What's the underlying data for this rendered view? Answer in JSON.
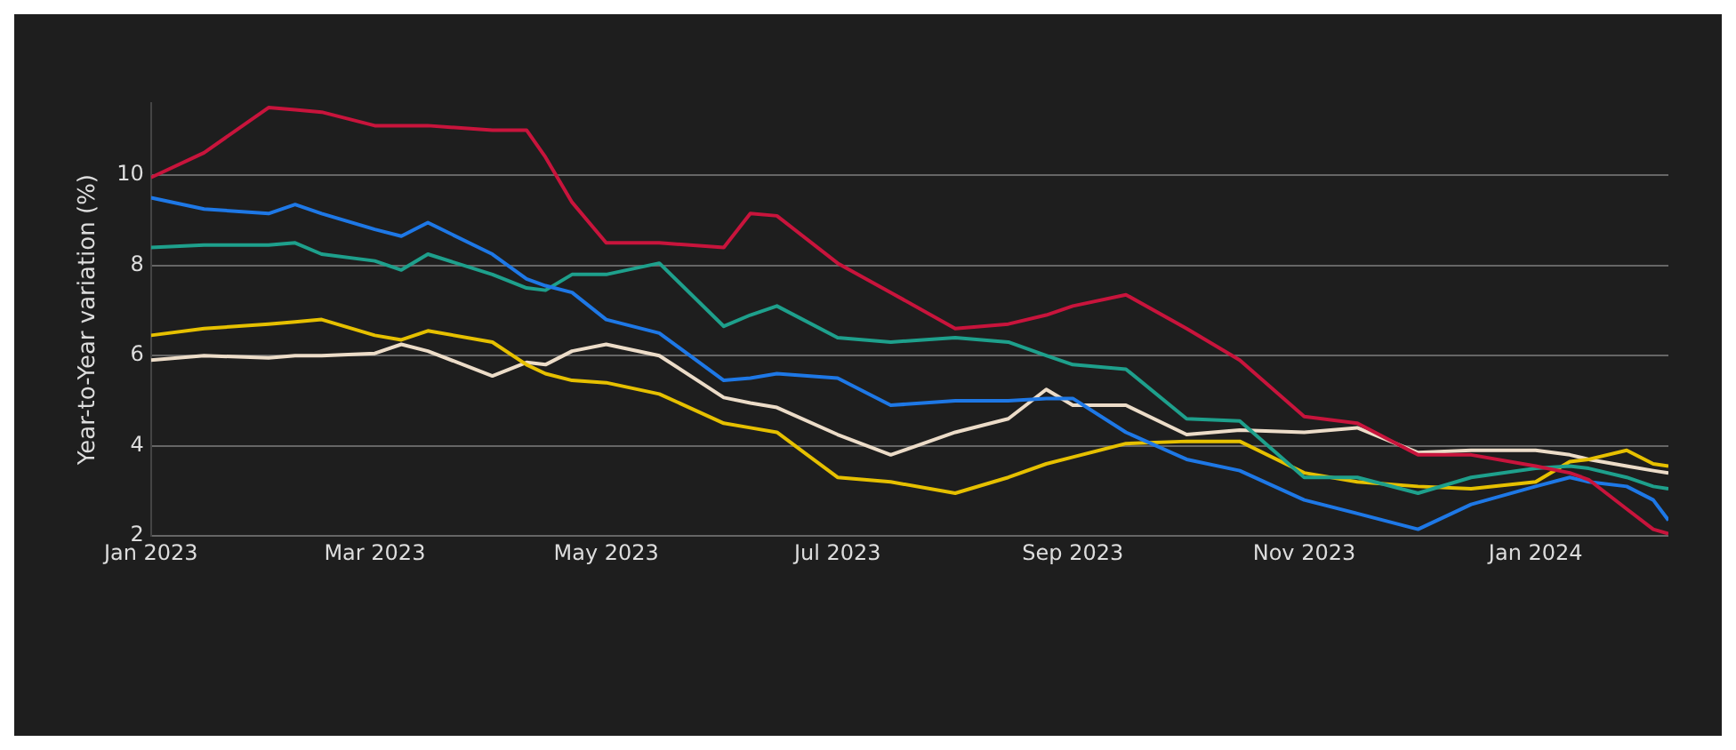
{
  "chart_data": {
    "type": "line",
    "ylabel": "Year-to-Year variation (%)",
    "x": [
      "2023-01-01",
      "2023-01-15",
      "2023-02-01",
      "2023-02-08",
      "2023-02-15",
      "2023-03-01",
      "2023-03-08",
      "2023-03-15",
      "2023-04-01",
      "2023-04-10",
      "2023-04-15",
      "2023-04-22",
      "2023-05-01",
      "2023-05-15",
      "2023-06-01",
      "2023-06-08",
      "2023-06-15",
      "2023-07-01",
      "2023-07-15",
      "2023-08-01",
      "2023-08-15",
      "2023-08-25",
      "2023-09-01",
      "2023-09-15",
      "2023-10-01",
      "2023-10-15",
      "2023-11-01",
      "2023-11-15",
      "2023-12-01",
      "2023-12-15",
      "2024-01-01",
      "2024-01-10",
      "2024-01-15",
      "2024-01-25",
      "2024-02-01",
      "2024-02-05"
    ],
    "xlim": [
      "2023-01-01",
      "2024-02-05"
    ],
    "xticks": [
      {
        "value": "2023-01-01",
        "label": "Jan 2023"
      },
      {
        "value": "2023-03-01",
        "label": "Mar 2023"
      },
      {
        "value": "2023-05-01",
        "label": "May 2023"
      },
      {
        "value": "2023-07-01",
        "label": "Jul 2023"
      },
      {
        "value": "2023-09-01",
        "label": "Sep 2023"
      },
      {
        "value": "2023-11-01",
        "label": "Nov 2023"
      },
      {
        "value": "2024-01-01",
        "label": "Jan 2024"
      }
    ],
    "ylim": [
      2,
      11.6
    ],
    "yticks": [
      2,
      4,
      6,
      8,
      10
    ],
    "grid": "y",
    "legend": false,
    "marker": "none",
    "line_style": "solid",
    "series": [
      {
        "color": "#c8143c",
        "values": [
          9.95,
          10.5,
          11.5,
          11.45,
          11.4,
          11.1,
          11.1,
          11.1,
          11.0,
          11.0,
          10.4,
          9.4,
          8.5,
          8.5,
          8.4,
          9.15,
          9.1,
          8.05,
          7.4,
          6.6,
          6.7,
          6.9,
          7.1,
          7.35,
          6.6,
          5.9,
          4.65,
          4.5,
          3.8,
          3.8,
          3.55,
          3.4,
          3.25,
          2.6,
          2.15,
          2.05
        ]
      },
      {
        "color": "#1e78e6",
        "values": [
          9.5,
          9.25,
          9.15,
          9.35,
          9.15,
          8.8,
          8.65,
          8.95,
          8.25,
          7.7,
          7.55,
          7.4,
          6.8,
          6.5,
          5.45,
          5.5,
          5.6,
          5.5,
          4.9,
          5.0,
          5.0,
          5.05,
          5.05,
          4.3,
          3.7,
          3.45,
          2.8,
          2.5,
          2.15,
          2.7,
          3.1,
          3.3,
          3.2,
          3.1,
          2.8,
          2.35
        ]
      },
      {
        "color": "#1ea08c",
        "values": [
          8.4,
          8.45,
          8.45,
          8.5,
          8.25,
          8.1,
          7.9,
          8.25,
          7.8,
          7.5,
          7.45,
          7.8,
          7.8,
          8.05,
          6.65,
          6.9,
          7.1,
          6.4,
          6.3,
          6.4,
          6.3,
          6.0,
          5.8,
          5.7,
          4.6,
          4.55,
          3.3,
          3.3,
          2.95,
          3.3,
          3.5,
          3.55,
          3.5,
          3.3,
          3.1,
          3.05
        ]
      },
      {
        "color": "#e6c000",
        "values": [
          6.45,
          6.6,
          6.7,
          6.75,
          6.8,
          6.45,
          6.35,
          6.55,
          6.3,
          5.8,
          5.6,
          5.45,
          5.4,
          5.15,
          4.5,
          4.4,
          4.3,
          3.3,
          3.2,
          2.95,
          3.3,
          3.6,
          3.75,
          4.05,
          4.1,
          4.1,
          3.4,
          3.2,
          3.1,
          3.05,
          3.2,
          3.65,
          3.7,
          3.9,
          3.6,
          3.55
        ]
      },
      {
        "color": "#ecdcc8",
        "values": [
          5.9,
          6.0,
          5.95,
          6.0,
          6.0,
          6.05,
          6.25,
          6.1,
          5.55,
          5.85,
          5.8,
          6.1,
          6.25,
          6.0,
          5.07,
          4.95,
          4.85,
          4.25,
          3.8,
          4.3,
          4.6,
          5.25,
          4.9,
          4.9,
          4.25,
          4.35,
          4.3,
          4.4,
          3.85,
          3.9,
          3.9,
          3.8,
          3.7,
          3.55,
          3.45,
          3.4
        ]
      }
    ]
  }
}
